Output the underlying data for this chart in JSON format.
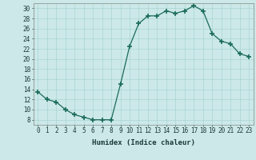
{
  "x": [
    0,
    1,
    2,
    3,
    4,
    5,
    6,
    7,
    8,
    9,
    10,
    11,
    12,
    13,
    14,
    15,
    16,
    17,
    18,
    19,
    20,
    21,
    22,
    23
  ],
  "y": [
    13.5,
    12.0,
    11.5,
    10.0,
    9.0,
    8.5,
    8.0,
    8.0,
    8.0,
    15.0,
    22.5,
    27.0,
    28.5,
    28.5,
    29.5,
    29.0,
    29.5,
    30.5,
    29.5,
    25.0,
    23.5,
    23.0,
    21.0,
    20.5
  ],
  "xlabel": "Humidex (Indice chaleur)",
  "xlim": [
    -0.5,
    23.5
  ],
  "ylim": [
    7,
    31
  ],
  "yticks": [
    8,
    10,
    12,
    14,
    16,
    18,
    20,
    22,
    24,
    26,
    28,
    30
  ],
  "xticks": [
    0,
    1,
    2,
    3,
    4,
    5,
    6,
    7,
    8,
    9,
    10,
    11,
    12,
    13,
    14,
    15,
    16,
    17,
    18,
    19,
    20,
    21,
    22,
    23
  ],
  "line_color": "#1a6b5a",
  "marker_color": "#1a6b5a",
  "bg_color": "#cce8e8",
  "grid_color": "#aad4d4",
  "xlabel_fontsize": 6.5,
  "tick_fontsize": 5.5
}
